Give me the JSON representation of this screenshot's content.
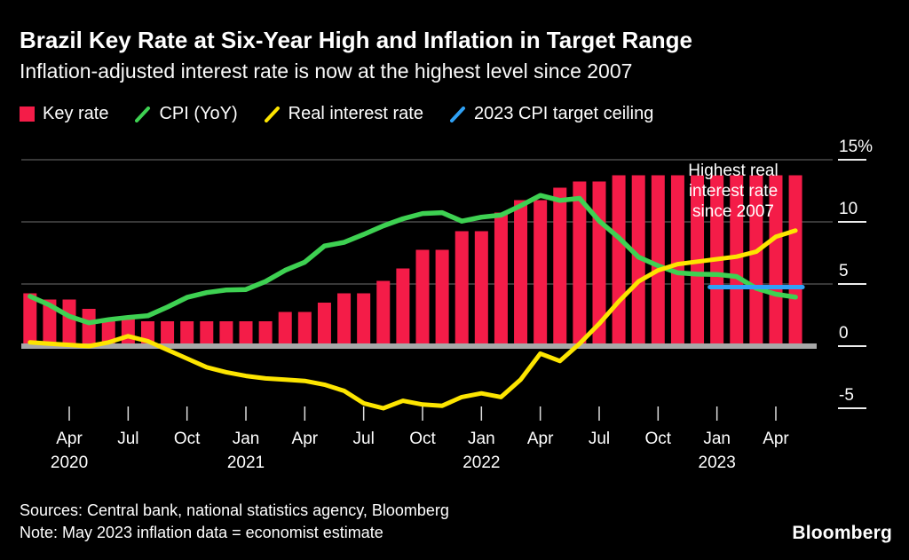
{
  "header": {
    "title": "Brazil Key Rate at Six-Year High and Inflation in Target Range",
    "subtitle": "Inflation-adjusted interest rate is now at the highest level since 2007"
  },
  "legend": {
    "items": [
      {
        "label": "Key rate",
        "color": "#f41c48",
        "type": "square",
        "icon": "key-rate-swatch-icon"
      },
      {
        "label": "CPI (YoY)",
        "color": "#3ed152",
        "type": "line",
        "icon": "cpi-line-swatch-icon"
      },
      {
        "label": "Real interest rate",
        "color": "#fde500",
        "type": "line",
        "icon": "real-rate-line-swatch-icon"
      },
      {
        "label": "2023 CPI target ceiling",
        "color": "#2fa1f5",
        "type": "line",
        "icon": "cpi-target-line-swatch-icon"
      }
    ]
  },
  "annotation": "Highest real interest rate since 2007",
  "footer": {
    "sources": "Sources: Central bank, national statistics agency, Bloomberg",
    "note": "Note: May 2023 inflation data = economist estimate",
    "logo": "Bloomberg"
  },
  "chart_data": {
    "type": "bar",
    "title": "Brazil Key Rate at Six-Year High and Inflation in Target Range",
    "x_unit": "month",
    "months": [
      "Feb 2020",
      "Mar 2020",
      "Apr 2020",
      "May 2020",
      "Jun 2020",
      "Jul 2020",
      "Aug 2020",
      "Sep 2020",
      "Oct 2020",
      "Nov 2020",
      "Dec 2020",
      "Jan 2021",
      "Feb 2021",
      "Mar 2021",
      "Apr 2021",
      "May 2021",
      "Jun 2021",
      "Jul 2021",
      "Aug 2021",
      "Sep 2021",
      "Oct 2021",
      "Nov 2021",
      "Dec 2021",
      "Jan 2022",
      "Feb 2022",
      "Mar 2022",
      "Apr 2022",
      "May 2022",
      "Jun 2022",
      "Jul 2022",
      "Aug 2022",
      "Sep 2022",
      "Oct 2022",
      "Nov 2022",
      "Dec 2022",
      "Jan 2023",
      "Feb 2023",
      "Mar 2023",
      "Apr 2023",
      "May 2023"
    ],
    "series": [
      {
        "id": "key-rate",
        "name": "Key rate",
        "type": "bar",
        "color": "#f41c48",
        "values": [
          4.25,
          3.75,
          3.75,
          3.0,
          2.25,
          2.25,
          2.0,
          2.0,
          2.0,
          2.0,
          2.0,
          2.0,
          2.0,
          2.75,
          2.75,
          3.5,
          4.25,
          4.25,
          5.25,
          6.25,
          7.75,
          7.75,
          9.25,
          9.25,
          10.75,
          11.75,
          11.75,
          12.75,
          13.25,
          13.25,
          13.75,
          13.75,
          13.75,
          13.75,
          13.75,
          13.75,
          13.75,
          13.75,
          13.75,
          13.75
        ]
      },
      {
        "id": "cpi",
        "name": "CPI (YoY)",
        "type": "line",
        "color": "#3ed152",
        "width": 5.5,
        "values": [
          4.01,
          3.3,
          2.4,
          1.88,
          2.13,
          2.31,
          2.44,
          3.14,
          3.92,
          4.31,
          4.52,
          4.56,
          5.2,
          6.1,
          6.76,
          8.06,
          8.35,
          8.99,
          9.68,
          10.25,
          10.67,
          10.74,
          10.06,
          10.38,
          10.54,
          11.3,
          12.13,
          11.73,
          11.89,
          10.07,
          8.73,
          7.17,
          6.47,
          5.9,
          5.79,
          5.77,
          5.6,
          4.65,
          4.18,
          3.94
        ]
      },
      {
        "id": "real-rate",
        "name": "Real interest rate",
        "type": "line",
        "color": "#fde500",
        "width": 5,
        "values": [
          0.3,
          0.2,
          0.1,
          0.0,
          0.3,
          0.8,
          0.4,
          -0.3,
          -1.0,
          -1.7,
          -2.1,
          -2.4,
          -2.6,
          -2.7,
          -2.8,
          -3.1,
          -3.6,
          -4.6,
          -5.0,
          -4.4,
          -4.7,
          -4.8,
          -4.1,
          -3.8,
          -4.1,
          -2.7,
          -0.6,
          -1.2,
          0.2,
          1.8,
          3.6,
          5.2,
          6.1,
          6.6,
          6.8,
          7.0,
          7.2,
          7.6,
          8.8,
          9.3
        ]
      },
      {
        "id": "cpi-target",
        "name": "2023 CPI target ceiling",
        "type": "line",
        "color": "#2fa1f5",
        "width": 5,
        "extend_caps": true,
        "values": [
          null,
          null,
          null,
          null,
          null,
          null,
          null,
          null,
          null,
          null,
          null,
          null,
          null,
          null,
          null,
          null,
          null,
          null,
          null,
          null,
          null,
          null,
          null,
          null,
          null,
          null,
          null,
          null,
          null,
          null,
          null,
          null,
          null,
          null,
          null,
          4.75,
          4.75,
          4.75,
          4.75,
          4.75
        ]
      }
    ],
    "ylim": [
      -6.5,
      15
    ],
    "yticks": [
      {
        "label": "15%",
        "value": 15
      },
      {
        "label": "10",
        "value": 10
      },
      {
        "label": "5",
        "value": 5
      },
      {
        "label": "0",
        "value": 0
      },
      {
        "label": "-5",
        "value": -5
      }
    ],
    "grid_values": [
      15,
      10,
      5
    ],
    "zero_line": true,
    "xticks": [
      {
        "label": "Apr",
        "month_index": 2
      },
      {
        "label": "Jul",
        "month_index": 5
      },
      {
        "label": "Oct",
        "month_index": 8
      },
      {
        "label": "Jan",
        "month_index": 11
      },
      {
        "label": "Apr",
        "month_index": 14
      },
      {
        "label": "Jul",
        "month_index": 17
      },
      {
        "label": "Oct",
        "month_index": 20
      },
      {
        "label": "Jan",
        "month_index": 23
      },
      {
        "label": "Apr",
        "month_index": 26
      },
      {
        "label": "Jul",
        "month_index": 29
      },
      {
        "label": "Oct",
        "month_index": 32
      },
      {
        "label": "Jan",
        "month_index": 35
      },
      {
        "label": "Apr",
        "month_index": 38
      }
    ],
    "year_labels": [
      {
        "label": "2020",
        "month_index": 2
      },
      {
        "label": "2021",
        "month_index": 11
      },
      {
        "label": "2022",
        "month_index": 23
      },
      {
        "label": "2023",
        "month_index": 35
      }
    ],
    "colors": {
      "grid": "#4a4a4a",
      "zero_line": "#a8a8a8",
      "tick": "#dedede",
      "axis_text": "#ffffff",
      "background": "#000000"
    },
    "legend_position": "top"
  }
}
